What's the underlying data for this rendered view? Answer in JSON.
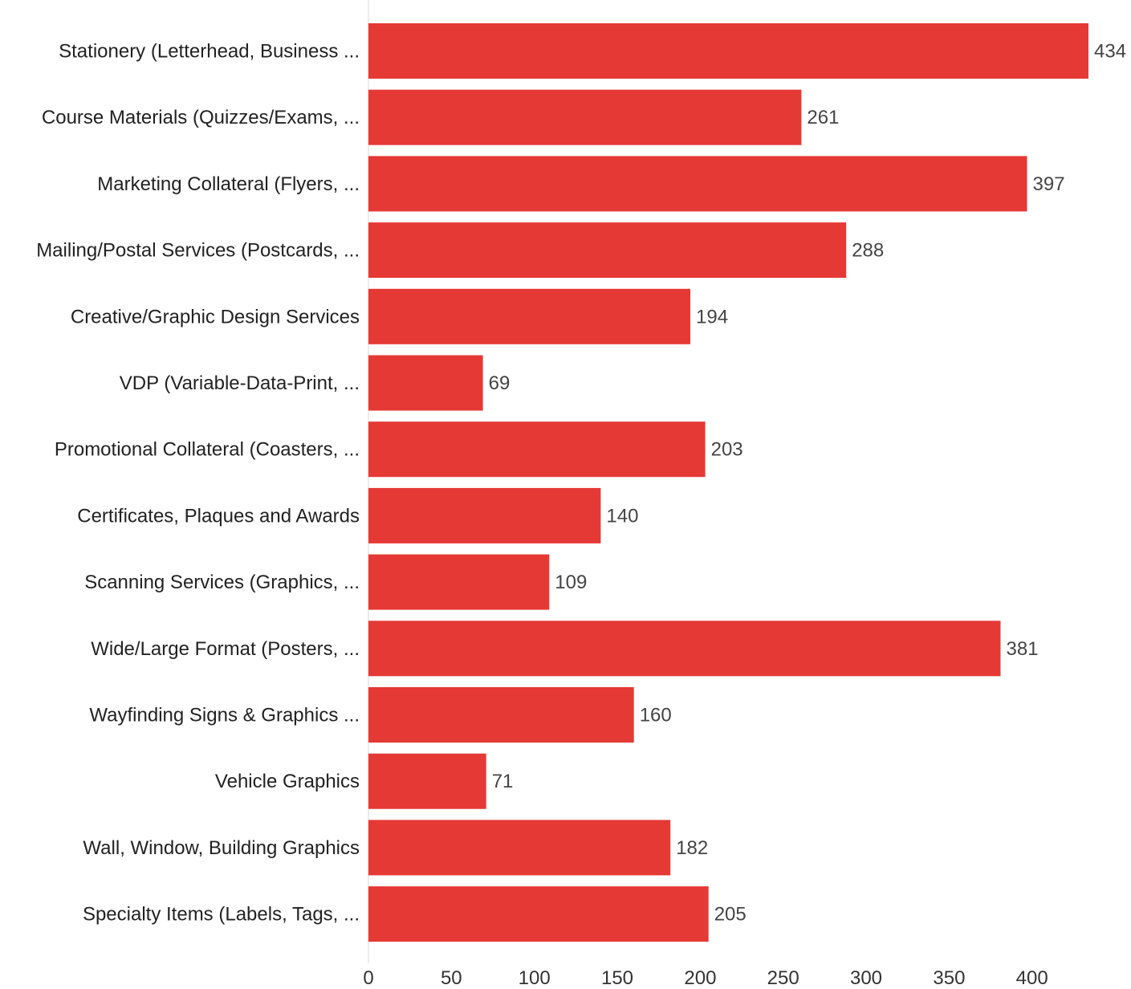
{
  "chart_data": {
    "type": "bar",
    "orientation": "horizontal",
    "categories": [
      "Stationery (Letterhead, Business ...",
      "Course Materials (Quizzes/Exams, ...",
      "Marketing Collateral (Flyers, ...",
      "Mailing/Postal Services (Postcards, ...",
      "Creative/Graphic Design Services",
      "VDP (Variable-Data-Print, ...",
      "Promotional Collateral (Coasters, ...",
      "Certificates, Plaques and Awards",
      "Scanning Services (Graphics, ...",
      "Wide/Large Format (Posters, ...",
      "Wayfinding Signs & Graphics ...",
      "Vehicle Graphics",
      "Wall, Window, Building Graphics",
      "Specialty Items (Labels, Tags, ..."
    ],
    "values": [
      434,
      261,
      397,
      288,
      194,
      69,
      203,
      140,
      109,
      381,
      160,
      71,
      182,
      205
    ],
    "xlim": [
      0,
      434
    ],
    "xticks": [
      "0",
      "50",
      "100",
      "150",
      "200",
      "250",
      "300",
      "350",
      "400"
    ],
    "title": "",
    "xlabel": "",
    "ylabel": "",
    "grid": false,
    "legend": "none",
    "bar_color": "#e53935",
    "axis_color": "#d9d9d9"
  }
}
